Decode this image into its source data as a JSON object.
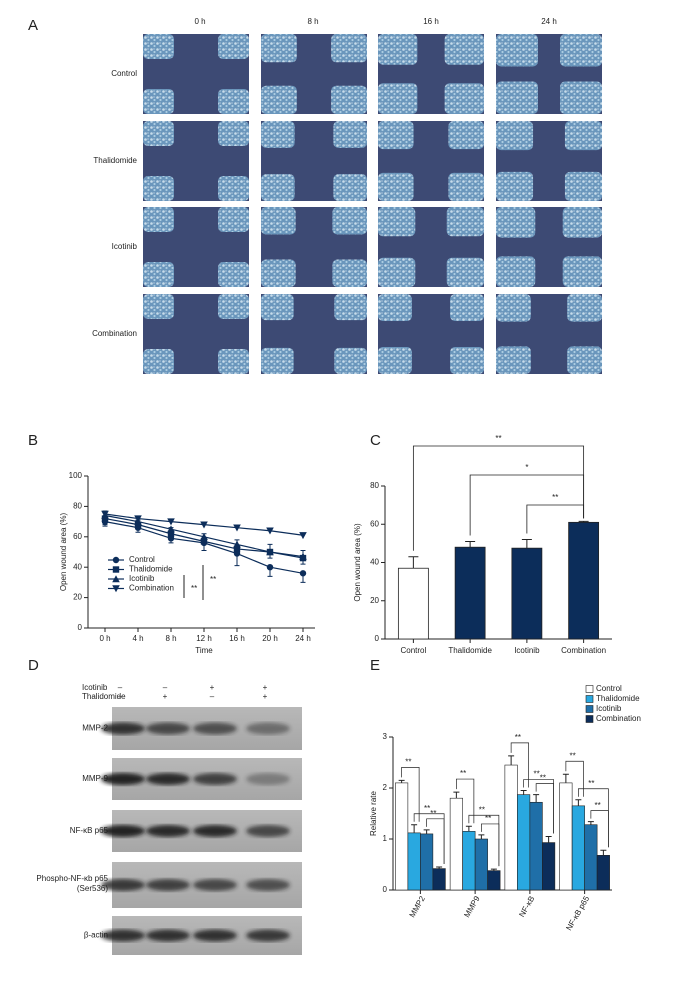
{
  "panels": {
    "a": "A",
    "b": "B",
    "c": "C",
    "d": "D",
    "e": "E"
  },
  "panel_a": {
    "columns": [
      "0 h",
      "8 h",
      "16 h",
      "24 h"
    ],
    "rows": [
      "Control",
      "Thalidomide",
      "Icotinib",
      "Combination"
    ]
  },
  "panel_d": {
    "conditions": [
      {
        "name": "Icotinib",
        "signs": [
          "–",
          "–",
          "+",
          "+"
        ]
      },
      {
        "name": "Thalidomide",
        "signs": [
          "–",
          "+",
          "–",
          "+"
        ]
      }
    ],
    "bands": [
      "MMP-2",
      "MMP-9",
      "NF-κB p65",
      "Phospho-NF-κb p65 (Ser536)",
      "β-actin"
    ]
  },
  "chart_data": [
    {
      "type": "line",
      "xlabel": "Time",
      "ylabel": "Open wound area (%)",
      "categories": [
        "0 h",
        "4 h",
        "8 h",
        "12 h",
        "16 h",
        "20 h",
        "24 h"
      ],
      "ylim": [
        0,
        100
      ],
      "yticks": [
        0,
        20,
        40,
        60,
        80,
        100
      ],
      "legend": "left",
      "series": [
        {
          "name": "Control",
          "color": "#0c2d5a",
          "marker": "circle",
          "values": [
            70,
            66,
            59,
            56,
            49,
            40,
            36
          ],
          "errors": [
            3,
            3,
            3,
            5,
            8,
            6,
            6
          ]
        },
        {
          "name": "Thalidomide",
          "color": "#0c2d5a",
          "marker": "square",
          "values": [
            72,
            68,
            62,
            57,
            52,
            50,
            46
          ],
          "errors": [
            4,
            3,
            4,
            5,
            6,
            5,
            5
          ]
        },
        {
          "name": "Icotinib",
          "color": "#0c2d5a",
          "marker": "triangle-up",
          "values": [
            74,
            70,
            65,
            60,
            55,
            50,
            47
          ],
          "errors": [
            6,
            4,
            4,
            4,
            5,
            4,
            5
          ]
        },
        {
          "name": "Combination",
          "color": "#0c2d5a",
          "marker": "triangle-down",
          "values": [
            75,
            72,
            70,
            68,
            66,
            64,
            61
          ],
          "errors": [
            2,
            1,
            1,
            1,
            1,
            1,
            1
          ]
        }
      ],
      "annotations": [
        "**",
        "**"
      ]
    },
    {
      "type": "bar",
      "ylabel": "Open wound area (%)",
      "categories": [
        "Control",
        "Thalidomide",
        "Icotinib",
        "Combination"
      ],
      "values": [
        37,
        48,
        47.5,
        61
      ],
      "errors": [
        6,
        3,
        4.5,
        0.5
      ],
      "colors": [
        "#ffffff",
        "#0c2d5a",
        "#0c2d5a",
        "#0c2d5a"
      ],
      "ylim": [
        0,
        80
      ],
      "yticks": [
        0,
        20,
        40,
        60,
        80
      ],
      "annotations": [
        "**",
        "*",
        "**"
      ]
    },
    {
      "type": "grouped_bar",
      "ylabel": "Relative rate",
      "categories": [
        "MMP2",
        "MMP9",
        "NF-κB",
        "NF-κB p65"
      ],
      "ylim": [
        0,
        3
      ],
      "yticks": [
        0,
        1,
        2,
        3
      ],
      "legend": "top-right",
      "series": [
        {
          "name": "Control",
          "color": "#ffffff",
          "values": [
            2.1,
            1.8,
            2.45,
            2.1
          ],
          "errors": [
            0.05,
            0.12,
            0.18,
            0.17
          ]
        },
        {
          "name": "Thalidomide",
          "color": "#29a8e0",
          "values": [
            1.12,
            1.15,
            1.87,
            1.65
          ],
          "errors": [
            0.16,
            0.1,
            0.08,
            0.12
          ]
        },
        {
          "name": "Icotinib",
          "color": "#1f6fa8",
          "values": [
            1.1,
            1.0,
            1.72,
            1.28
          ],
          "errors": [
            0.08,
            0.08,
            0.15,
            0.06
          ]
        },
        {
          "name": "Combination",
          "color": "#0c2d5a",
          "values": [
            0.42,
            0.38,
            0.93,
            0.68
          ],
          "errors": [
            0.03,
            0.03,
            0.12,
            0.1
          ]
        }
      ],
      "annotations": [
        [
          "**",
          "**",
          "**"
        ],
        [
          "**",
          "**",
          "**"
        ],
        [
          "**",
          "**",
          "**"
        ],
        [
          "**",
          "**",
          "**"
        ]
      ]
    }
  ]
}
